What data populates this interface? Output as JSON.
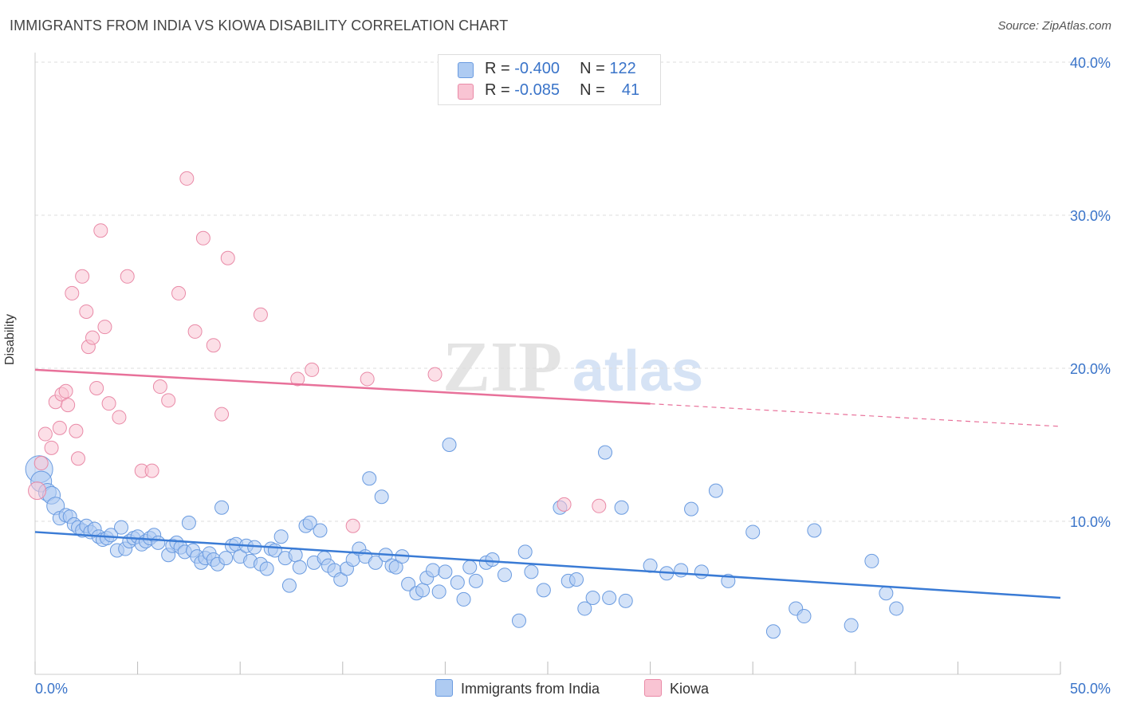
{
  "title": "IMMIGRANTS FROM INDIA VS KIOWA DISABILITY CORRELATION CHART",
  "source": "Source: ZipAtlas.com",
  "watermark": {
    "zip": "ZIP",
    "atlas": "atlas"
  },
  "legend": {
    "rows": [
      {
        "r_label": "R =",
        "r_value": "-0.400",
        "n_label": "N =",
        "n_value": "122",
        "color": "#aecbf2",
        "border": "#6a9be0"
      },
      {
        "r_label": "R =",
        "r_value": "-0.085",
        "n_label": "N =",
        "n_value": "41",
        "color": "#f9c4d3",
        "border": "#e98aa7"
      }
    ]
  },
  "bottom_legend": [
    {
      "label": "Immigrants from India",
      "color": "#aecbf2",
      "border": "#6a9be0"
    },
    {
      "label": "Kiowa",
      "color": "#f9c4d3",
      "border": "#e98aa7"
    }
  ],
  "chart_data": {
    "type": "scatter",
    "ylabel": "Disability",
    "xlabel": "",
    "xlim": [
      0,
      50
    ],
    "ylim": [
      0,
      40
    ],
    "x_tick_labels": [
      "0.0%",
      "50.0%"
    ],
    "y_tick_labels": [
      "10.0%",
      "20.0%",
      "30.0%",
      "40.0%"
    ],
    "y_ticks": [
      10,
      20,
      30,
      40
    ],
    "grid": "horizontal dashed",
    "colors": {
      "india": "#3a7bd5",
      "kiowa": "#e8719a",
      "axis_text": "#3a74c9"
    },
    "series": [
      {
        "name": "Immigrants from India",
        "trend": {
          "x": [
            0,
            50
          ],
          "y": [
            9.3,
            5.0
          ],
          "dashed_from": null
        },
        "points": [
          [
            0.2,
            13.4
          ],
          [
            0.3,
            12.6
          ],
          [
            0.6,
            11.9
          ],
          [
            0.8,
            11.7
          ],
          [
            1.0,
            11.0
          ],
          [
            1.2,
            10.2
          ],
          [
            1.5,
            10.4
          ],
          [
            1.7,
            10.3
          ],
          [
            1.9,
            9.8
          ],
          [
            2.1,
            9.6
          ],
          [
            2.3,
            9.4
          ],
          [
            2.5,
            9.7
          ],
          [
            2.7,
            9.3
          ],
          [
            2.9,
            9.5
          ],
          [
            3.1,
            9.0
          ],
          [
            3.3,
            8.8
          ],
          [
            3.5,
            8.9
          ],
          [
            3.7,
            9.1
          ],
          [
            4.0,
            8.1
          ],
          [
            4.2,
            9.6
          ],
          [
            4.4,
            8.2
          ],
          [
            4.6,
            8.7
          ],
          [
            4.8,
            8.9
          ],
          [
            5.0,
            9.0
          ],
          [
            5.2,
            8.5
          ],
          [
            5.4,
            8.7
          ],
          [
            5.6,
            8.9
          ],
          [
            5.8,
            9.1
          ],
          [
            6.0,
            8.6
          ],
          [
            6.5,
            7.8
          ],
          [
            6.7,
            8.4
          ],
          [
            6.9,
            8.6
          ],
          [
            7.1,
            8.3
          ],
          [
            7.3,
            8.0
          ],
          [
            7.5,
            9.9
          ],
          [
            7.7,
            8.1
          ],
          [
            7.9,
            7.7
          ],
          [
            8.1,
            7.3
          ],
          [
            8.3,
            7.6
          ],
          [
            8.5,
            7.9
          ],
          [
            8.7,
            7.5
          ],
          [
            8.9,
            7.2
          ],
          [
            9.1,
            10.9
          ],
          [
            9.3,
            7.6
          ],
          [
            9.6,
            8.4
          ],
          [
            9.8,
            8.5
          ],
          [
            10.0,
            7.7
          ],
          [
            10.3,
            8.4
          ],
          [
            10.5,
            7.4
          ],
          [
            10.7,
            8.3
          ],
          [
            11.0,
            7.2
          ],
          [
            11.3,
            6.9
          ],
          [
            11.5,
            8.2
          ],
          [
            11.7,
            8.1
          ],
          [
            12.0,
            9.0
          ],
          [
            12.2,
            7.6
          ],
          [
            12.4,
            5.8
          ],
          [
            12.7,
            7.8
          ],
          [
            12.9,
            7.0
          ],
          [
            13.2,
            9.7
          ],
          [
            13.4,
            9.9
          ],
          [
            13.6,
            7.3
          ],
          [
            13.9,
            9.4
          ],
          [
            14.1,
            7.6
          ],
          [
            14.3,
            7.1
          ],
          [
            14.6,
            6.8
          ],
          [
            14.9,
            6.2
          ],
          [
            15.2,
            6.9
          ],
          [
            15.5,
            7.5
          ],
          [
            15.8,
            8.2
          ],
          [
            16.1,
            7.7
          ],
          [
            16.3,
            12.8
          ],
          [
            16.6,
            7.3
          ],
          [
            16.9,
            11.6
          ],
          [
            17.1,
            7.8
          ],
          [
            17.4,
            7.1
          ],
          [
            17.6,
            7.0
          ],
          [
            17.9,
            7.7
          ],
          [
            18.2,
            5.9
          ],
          [
            18.6,
            5.3
          ],
          [
            18.9,
            5.5
          ],
          [
            19.1,
            6.3
          ],
          [
            19.4,
            6.8
          ],
          [
            19.7,
            5.4
          ],
          [
            20.0,
            6.7
          ],
          [
            20.2,
            15.0
          ],
          [
            20.6,
            6.0
          ],
          [
            20.9,
            4.9
          ],
          [
            21.2,
            7.0
          ],
          [
            21.5,
            6.1
          ],
          [
            22.0,
            7.3
          ],
          [
            22.3,
            7.5
          ],
          [
            22.9,
            6.5
          ],
          [
            23.6,
            3.5
          ],
          [
            23.9,
            8.0
          ],
          [
            24.2,
            6.7
          ],
          [
            24.8,
            5.5
          ],
          [
            25.6,
            10.9
          ],
          [
            26.0,
            6.1
          ],
          [
            26.4,
            6.2
          ],
          [
            26.8,
            4.3
          ],
          [
            27.2,
            5.0
          ],
          [
            27.8,
            14.5
          ],
          [
            28.0,
            5.0
          ],
          [
            28.6,
            10.9
          ],
          [
            28.8,
            4.8
          ],
          [
            30.0,
            7.1
          ],
          [
            30.8,
            6.6
          ],
          [
            31.5,
            6.8
          ],
          [
            32.0,
            10.8
          ],
          [
            32.5,
            6.7
          ],
          [
            33.2,
            12.0
          ],
          [
            33.8,
            6.1
          ],
          [
            35.0,
            9.3
          ],
          [
            36.0,
            2.8
          ],
          [
            37.1,
            4.3
          ],
          [
            37.5,
            3.8
          ],
          [
            38.0,
            9.4
          ],
          [
            39.8,
            3.2
          ],
          [
            40.8,
            7.4
          ],
          [
            41.5,
            5.3
          ],
          [
            42.0,
            4.3
          ]
        ]
      },
      {
        "name": "Kiowa",
        "trend": {
          "x": [
            0,
            50
          ],
          "y": [
            19.9,
            16.2
          ],
          "dashed_from": 30
        },
        "points": [
          [
            0.1,
            12.0
          ],
          [
            0.3,
            13.8
          ],
          [
            0.5,
            15.7
          ],
          [
            0.8,
            14.8
          ],
          [
            1.0,
            17.8
          ],
          [
            1.2,
            16.1
          ],
          [
            1.3,
            18.3
          ],
          [
            1.5,
            18.5
          ],
          [
            1.6,
            17.6
          ],
          [
            1.8,
            24.9
          ],
          [
            2.0,
            15.9
          ],
          [
            2.1,
            14.1
          ],
          [
            2.3,
            26.0
          ],
          [
            2.5,
            23.7
          ],
          [
            2.6,
            21.4
          ],
          [
            2.8,
            22.0
          ],
          [
            3.0,
            18.7
          ],
          [
            3.2,
            29.0
          ],
          [
            3.4,
            22.7
          ],
          [
            3.6,
            17.7
          ],
          [
            4.1,
            16.8
          ],
          [
            4.5,
            26.0
          ],
          [
            5.2,
            13.3
          ],
          [
            5.7,
            13.3
          ],
          [
            6.1,
            18.8
          ],
          [
            6.5,
            17.9
          ],
          [
            7.0,
            24.9
          ],
          [
            7.4,
            32.4
          ],
          [
            7.8,
            22.4
          ],
          [
            8.2,
            28.5
          ],
          [
            8.7,
            21.5
          ],
          [
            9.1,
            17.0
          ],
          [
            9.4,
            27.2
          ],
          [
            11.0,
            23.5
          ],
          [
            12.8,
            19.3
          ],
          [
            13.5,
            19.9
          ],
          [
            15.5,
            9.7
          ],
          [
            16.2,
            19.3
          ],
          [
            19.5,
            19.6
          ],
          [
            25.8,
            11.1
          ],
          [
            27.5,
            11.0
          ]
        ]
      }
    ]
  }
}
